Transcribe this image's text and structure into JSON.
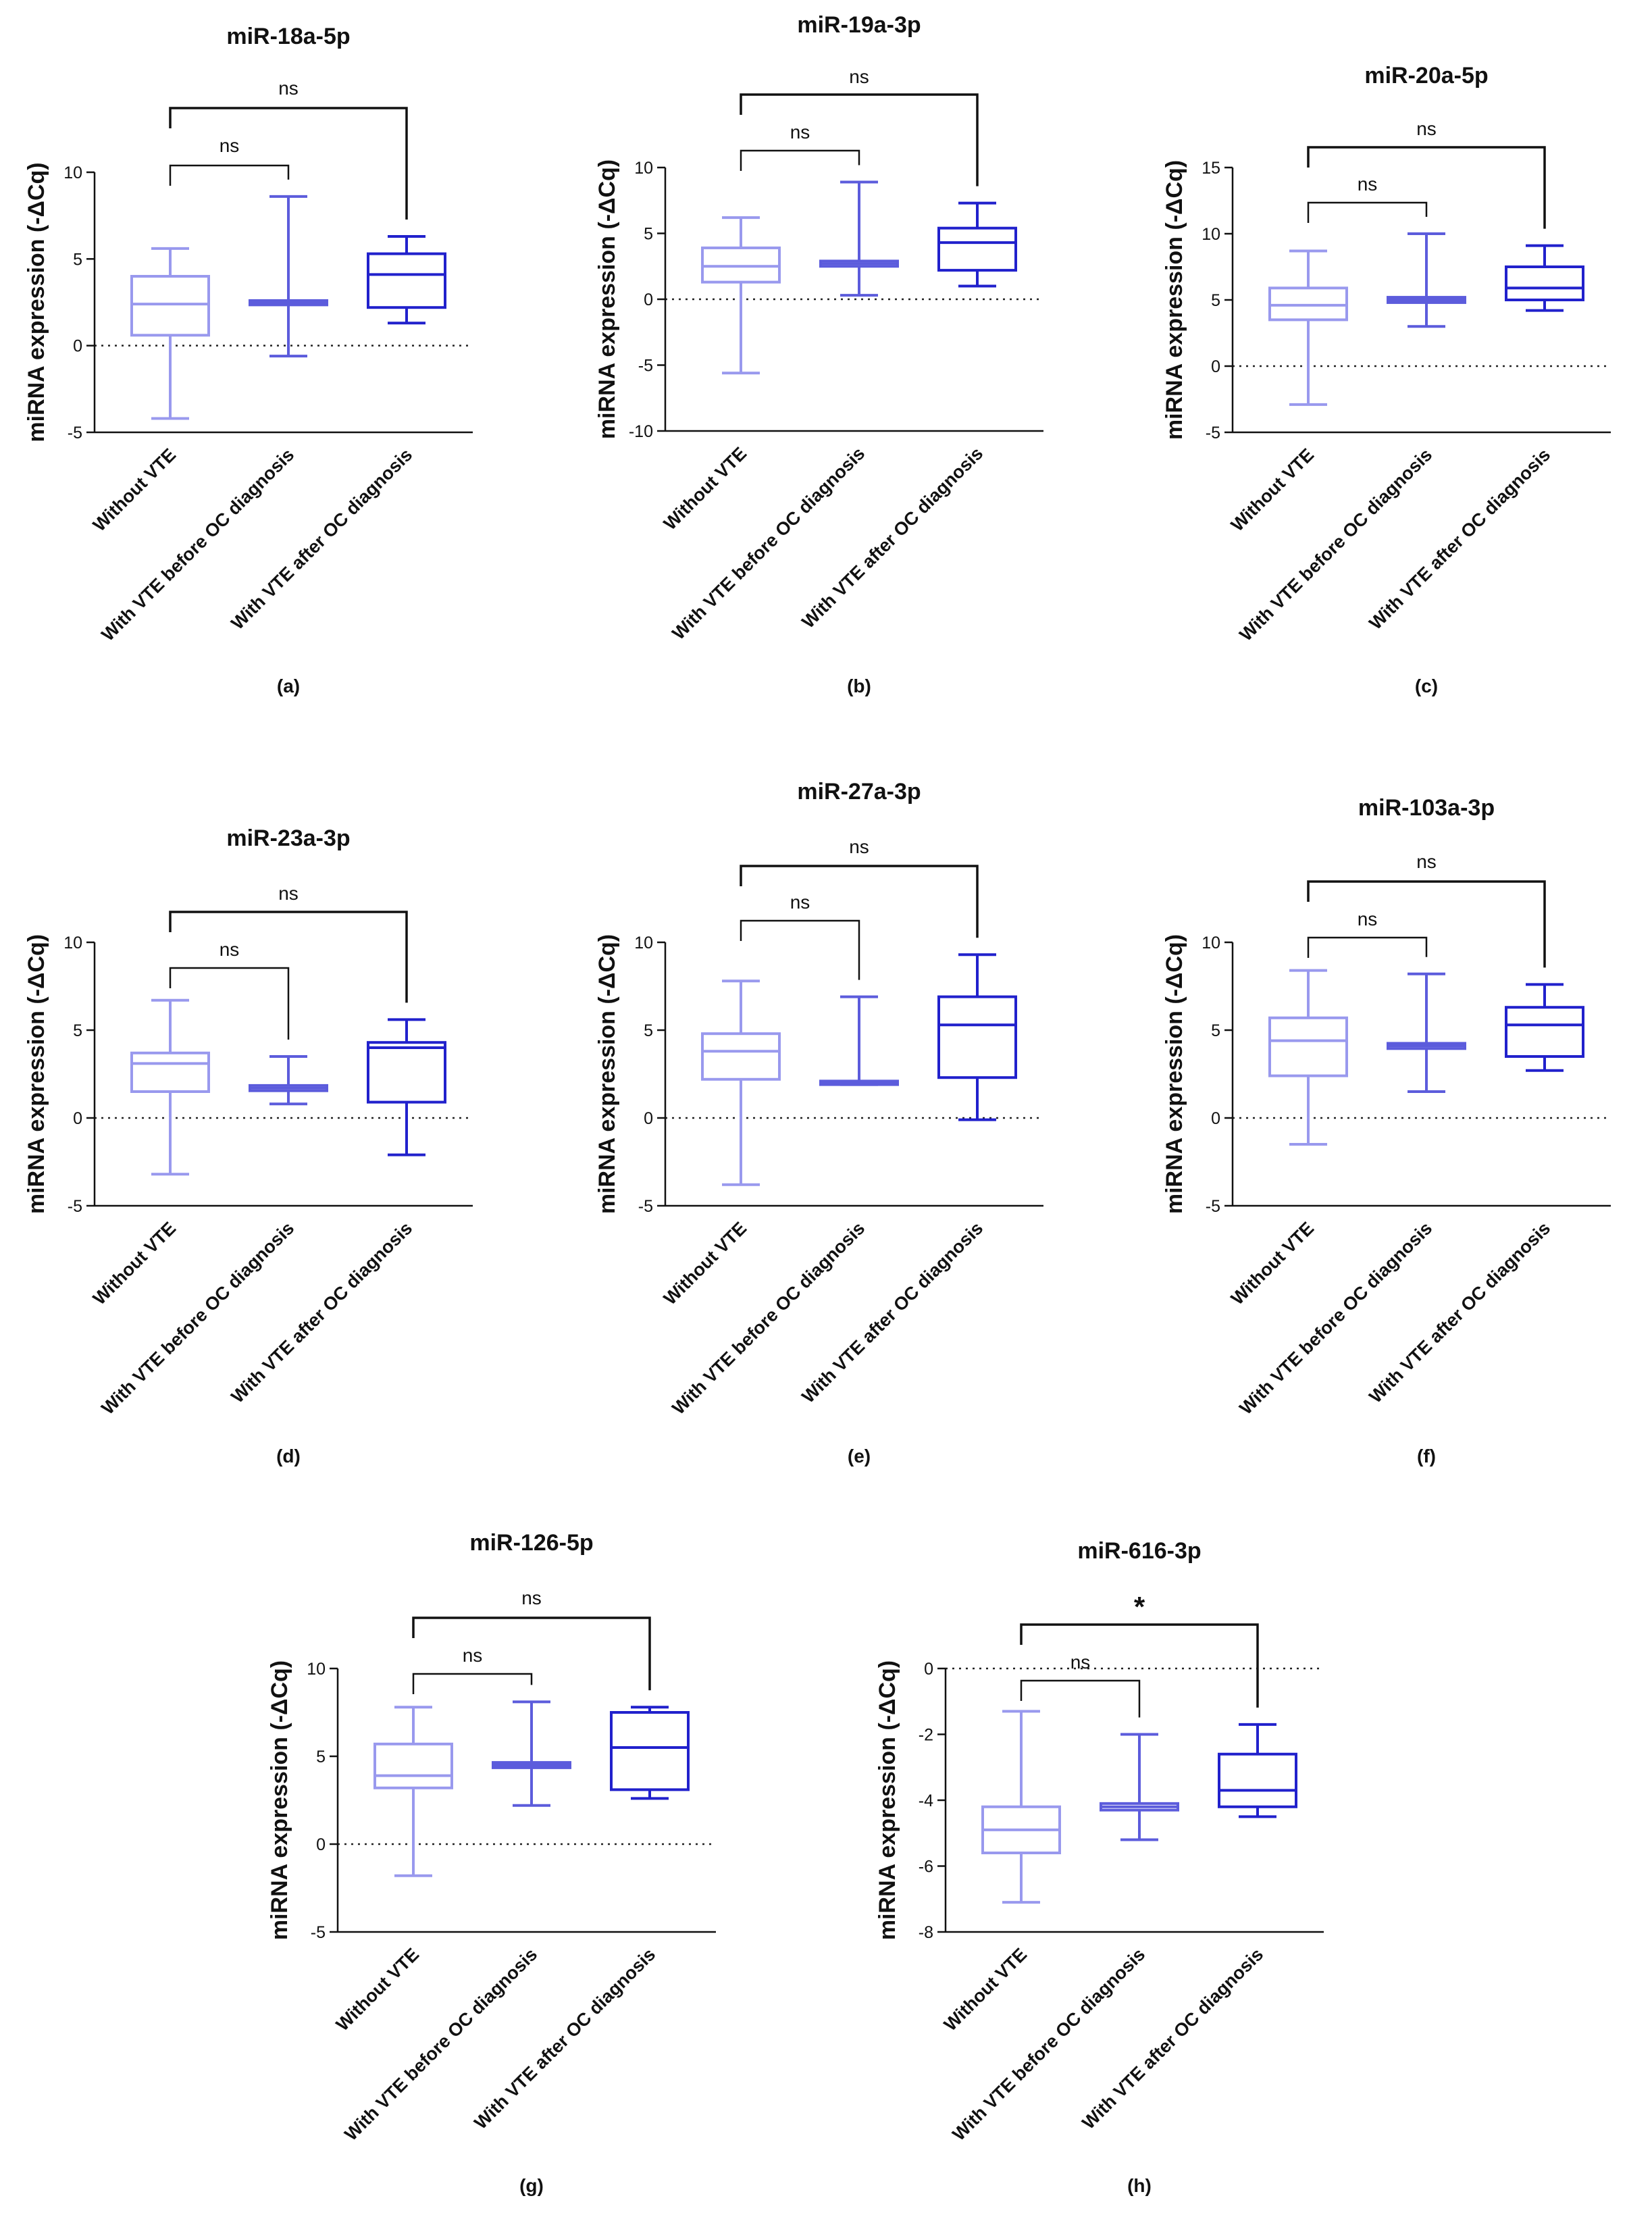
{
  "figure": {
    "ylabel": "miRNA expression (-ΔCq)",
    "groups": [
      "Without VTE",
      "With VTE before OC diagnosis",
      "With VTE after OC diagnosis"
    ],
    "series_colors": [
      "#9999ee",
      "#5c5cdc",
      "#2121cc"
    ]
  },
  "chart_data": [
    {
      "type": "box",
      "panel": "(a)",
      "title": "miR-18a-5p",
      "ylim": [
        -5,
        10
      ],
      "yticks": [
        -5,
        0,
        5,
        10
      ],
      "ref_line": 0,
      "boxes": [
        {
          "min": -4.2,
          "q1": 0.6,
          "median": 2.4,
          "q3": 4.0,
          "max": 5.6
        },
        {
          "min": -0.6,
          "q1": 2.35,
          "median": 2.5,
          "q3": 2.6,
          "max": 8.6
        },
        {
          "min": 1.3,
          "q1": 2.2,
          "median": 4.1,
          "q3": 5.3,
          "max": 6.3
        }
      ],
      "comparisons": [
        {
          "from": 0,
          "to": 1,
          "label": "ns"
        },
        {
          "from": 0,
          "to": 2,
          "label": "ns"
        }
      ]
    },
    {
      "type": "box",
      "panel": "(b)",
      "title": "miR-19a-3p",
      "ylim": [
        -10,
        10
      ],
      "yticks": [
        -10,
        -5,
        0,
        5,
        10
      ],
      "ref_line": 0,
      "boxes": [
        {
          "min": -5.6,
          "q1": 1.3,
          "median": 2.5,
          "q3": 3.9,
          "max": 6.2
        },
        {
          "min": 0.3,
          "q1": 2.5,
          "median": 2.7,
          "q3": 2.9,
          "max": 8.9
        },
        {
          "min": 1.0,
          "q1": 2.2,
          "median": 4.3,
          "q3": 5.4,
          "max": 7.3
        }
      ],
      "comparisons": [
        {
          "from": 0,
          "to": 1,
          "label": "ns"
        },
        {
          "from": 0,
          "to": 2,
          "label": "ns"
        }
      ]
    },
    {
      "type": "box",
      "panel": "(c)",
      "title": "miR-20a-5p",
      "ylim": [
        -5,
        15
      ],
      "yticks": [
        -5,
        0,
        5,
        10,
        15
      ],
      "ref_line": 0,
      "boxes": [
        {
          "min": -2.9,
          "q1": 3.5,
          "median": 4.6,
          "q3": 5.9,
          "max": 8.7
        },
        {
          "min": 3.0,
          "q1": 4.8,
          "median": 5.0,
          "q3": 5.2,
          "max": 10.0
        },
        {
          "min": 4.2,
          "q1": 5.0,
          "median": 5.9,
          "q3": 7.5,
          "max": 9.1
        }
      ],
      "comparisons": [
        {
          "from": 0,
          "to": 1,
          "label": "ns"
        },
        {
          "from": 0,
          "to": 2,
          "label": "ns"
        }
      ]
    },
    {
      "type": "box",
      "panel": "(d)",
      "title": "miR-23a-3p",
      "ylim": [
        -5,
        10
      ],
      "yticks": [
        -5,
        0,
        5,
        10
      ],
      "ref_line": 0,
      "boxes": [
        {
          "min": -3.2,
          "q1": 1.5,
          "median": 3.1,
          "q3": 3.7,
          "max": 6.7
        },
        {
          "min": 0.8,
          "q1": 1.55,
          "median": 1.7,
          "q3": 1.85,
          "max": 3.5
        },
        {
          "min": -2.1,
          "q1": 0.9,
          "median": 4.0,
          "q3": 4.3,
          "max": 5.6
        }
      ],
      "comparisons": [
        {
          "from": 0,
          "to": 1,
          "label": "ns"
        },
        {
          "from": 0,
          "to": 2,
          "label": "ns"
        }
      ]
    },
    {
      "type": "box",
      "panel": "(e)",
      "title": "miR-27a-3p",
      "ylim": [
        -5,
        10
      ],
      "yticks": [
        -5,
        0,
        5,
        10
      ],
      "ref_line": 0,
      "boxes": [
        {
          "min": -3.8,
          "q1": 2.2,
          "median": 3.8,
          "q3": 4.8,
          "max": 7.8
        },
        {
          "min": 1.9,
          "q1": 1.9,
          "median": 2.0,
          "q3": 2.1,
          "max": 6.9
        },
        {
          "min": -0.1,
          "q1": 2.3,
          "median": 5.3,
          "q3": 6.9,
          "max": 9.3
        }
      ],
      "comparisons": [
        {
          "from": 0,
          "to": 1,
          "label": "ns"
        },
        {
          "from": 0,
          "to": 2,
          "label": "ns"
        }
      ]
    },
    {
      "type": "box",
      "panel": "(f)",
      "title": "miR-103a-3p",
      "ylim": [
        -5,
        10
      ],
      "yticks": [
        -5,
        0,
        5,
        10
      ],
      "ref_line": 0,
      "boxes": [
        {
          "min": -1.5,
          "q1": 2.4,
          "median": 4.4,
          "q3": 5.7,
          "max": 8.4
        },
        {
          "min": 1.5,
          "q1": 3.95,
          "median": 4.1,
          "q3": 4.25,
          "max": 8.2
        },
        {
          "min": 2.7,
          "q1": 3.5,
          "median": 5.3,
          "q3": 6.3,
          "max": 7.6
        }
      ],
      "comparisons": [
        {
          "from": 0,
          "to": 1,
          "label": "ns"
        },
        {
          "from": 0,
          "to": 2,
          "label": "ns"
        }
      ]
    },
    {
      "type": "box",
      "panel": "(g)",
      "title": "miR-126-5p",
      "ylim": [
        -5,
        10
      ],
      "yticks": [
        -5,
        0,
        5,
        10
      ],
      "ref_line": 0,
      "boxes": [
        {
          "min": -1.8,
          "q1": 3.2,
          "median": 3.9,
          "q3": 5.7,
          "max": 7.8
        },
        {
          "min": 2.2,
          "q1": 4.35,
          "median": 4.5,
          "q3": 4.65,
          "max": 8.1
        },
        {
          "min": 2.6,
          "q1": 3.1,
          "median": 5.5,
          "q3": 7.5,
          "max": 7.8
        }
      ],
      "comparisons": [
        {
          "from": 0,
          "to": 1,
          "label": "ns"
        },
        {
          "from": 0,
          "to": 2,
          "label": "ns"
        }
      ]
    },
    {
      "type": "box",
      "panel": "(h)",
      "title": "miR-616-3p",
      "ylim": [
        -8,
        0
      ],
      "yticks": [
        -8,
        -6,
        -4,
        -2,
        0
      ],
      "ref_line": 0,
      "boxes": [
        {
          "min": -7.1,
          "q1": -5.6,
          "median": -4.9,
          "q3": -4.2,
          "max": -1.3
        },
        {
          "min": -5.2,
          "q1": -4.3,
          "median": -4.2,
          "q3": -4.1,
          "max": -2.0
        },
        {
          "min": -4.5,
          "q1": -4.2,
          "median": -3.7,
          "q3": -2.6,
          "max": -1.7
        }
      ],
      "comparisons": [
        {
          "from": 0,
          "to": 1,
          "label": "ns"
        },
        {
          "from": 0,
          "to": 2,
          "label": "*"
        }
      ]
    }
  ]
}
